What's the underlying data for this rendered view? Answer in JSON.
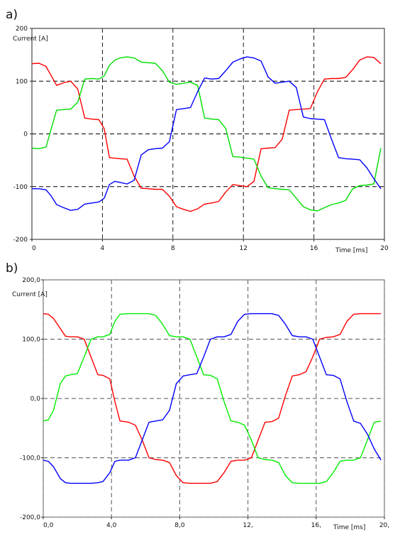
{
  "panel_labels": [
    "a)",
    "b)"
  ],
  "chart_data": [
    {
      "type": "line",
      "panel": "a)",
      "xlabel": "Time [ms]",
      "ylabel": "Current [A]",
      "xlim": [
        0,
        20
      ],
      "ylim": [
        -200,
        200
      ],
      "x_ticks": [
        0,
        4,
        8,
        12,
        16,
        20
      ],
      "x_tick_labels": [
        "0",
        "4",
        "8",
        "12",
        "16",
        "20"
      ],
      "y_ticks": [
        -200,
        -100,
        0,
        100,
        200
      ],
      "y_tick_labels": [
        "-200",
        "-100",
        "0",
        "100",
        "200"
      ],
      "grid": "dashed at inner ticks",
      "series": [
        {
          "color": "#ff0000",
          "x": [
            0,
            0.4,
            0.8,
            1.1,
            1.4,
            1.8,
            2.2,
            2.6,
            3.0,
            3.4,
            3.8,
            4.1,
            4.4,
            4.7,
            5.0,
            5.4,
            5.8,
            6.2,
            6.6,
            7.0,
            7.4,
            7.8,
            8.2,
            8.6,
            9.0,
            9.4,
            9.8,
            10.2,
            10.6,
            11.0,
            11.4,
            11.8,
            12.2,
            12.6,
            13.0,
            13.4,
            13.8,
            14.2,
            14.6,
            15.0,
            15.4,
            15.8,
            16.2,
            16.6,
            17.0,
            17.4,
            17.8,
            18.2,
            18.6,
            19.0,
            19.4,
            19.8
          ],
          "y": [
            133,
            134,
            128,
            110,
            92,
            97,
            100,
            85,
            30,
            28,
            27,
            10,
            -45,
            -46,
            -47,
            -48,
            -80,
            -103,
            -104,
            -105,
            -105,
            -118,
            -138,
            -143,
            -147,
            -142,
            -133,
            -131,
            -128,
            -110,
            -96,
            -98,
            -100,
            -90,
            -28,
            -27,
            -26,
            -10,
            45,
            46,
            47,
            48,
            80,
            104,
            105,
            105,
            107,
            122,
            140,
            146,
            145,
            133
          ]
        },
        {
          "color": "#00dd00",
          "x": [
            0,
            0.4,
            0.8,
            1.1,
            1.4,
            1.8,
            2.2,
            2.6,
            3.0,
            3.4,
            3.8,
            4.1,
            4.4,
            4.7,
            5.0,
            5.4,
            5.8,
            6.2,
            6.6,
            7.0,
            7.4,
            7.8,
            8.2,
            8.6,
            9.0,
            9.4,
            9.8,
            10.2,
            10.6,
            11.0,
            11.4,
            11.8,
            12.2,
            12.6,
            13.0,
            13.4,
            13.8,
            14.2,
            14.6,
            15.0,
            15.4,
            15.8,
            16.2,
            16.6,
            17.0,
            17.4,
            17.8,
            18.2,
            18.6,
            19.0,
            19.4,
            19.8
          ],
          "y": [
            -27,
            -28,
            -25,
            10,
            45,
            46,
            47,
            60,
            104,
            105,
            104,
            110,
            130,
            140,
            144,
            146,
            144,
            136,
            135,
            134,
            120,
            98,
            94,
            96,
            98,
            92,
            30,
            28,
            27,
            10,
            -43,
            -44,
            -46,
            -48,
            -80,
            -102,
            -104,
            -105,
            -106,
            -122,
            -138,
            -144,
            -146,
            -140,
            -134,
            -131,
            -126,
            -104,
            -98,
            -97,
            -95,
            -27
          ]
        },
        {
          "color": "#0000ff",
          "x": [
            0,
            0.4,
            0.8,
            1.1,
            1.4,
            1.8,
            2.2,
            2.6,
            3.0,
            3.4,
            3.8,
            4.1,
            4.4,
            4.7,
            5.0,
            5.4,
            5.8,
            6.2,
            6.6,
            7.0,
            7.4,
            7.8,
            8.2,
            8.6,
            9.0,
            9.4,
            9.8,
            10.2,
            10.6,
            11.0,
            11.4,
            11.8,
            12.2,
            12.6,
            13.0,
            13.4,
            13.8,
            14.2,
            14.6,
            15.0,
            15.4,
            15.8,
            16.2,
            16.6,
            17.0,
            17.4,
            17.8,
            18.2,
            18.6,
            19.0,
            19.4,
            19.8
          ],
          "y": [
            -104,
            -104,
            -106,
            -118,
            -134,
            -140,
            -145,
            -143,
            -133,
            -131,
            -129,
            -122,
            -96,
            -90,
            -92,
            -95,
            -88,
            -40,
            -30,
            -28,
            -27,
            -15,
            46,
            48,
            50,
            80,
            106,
            104,
            105,
            120,
            136,
            142,
            146,
            144,
            138,
            108,
            96,
            98,
            100,
            88,
            32,
            29,
            28,
            27,
            -10,
            -45,
            -47,
            -48,
            -49,
            -64,
            -85,
            -104
          ]
        }
      ]
    },
    {
      "type": "line",
      "panel": "b)",
      "xlabel": "Time [ms]",
      "ylabel": "Current [A]",
      "xlim": [
        0,
        20
      ],
      "ylim": [
        -200,
        200
      ],
      "x_ticks": [
        0,
        4,
        8,
        12,
        16,
        20
      ],
      "x_tick_labels": [
        "0,0",
        "4,0",
        "8,0",
        "12,",
        "16,",
        "20,"
      ],
      "y_ticks": [
        -200,
        -100,
        0,
        100,
        200
      ],
      "y_tick_labels": [
        "-200,0",
        "-100,0",
        "0,0",
        "100,0",
        "200,0"
      ],
      "grid": "dashed at all ticks",
      "series": [
        {
          "color": "#ff0000",
          "x": [
            0,
            0.3,
            0.6,
            1.0,
            1.3,
            1.6,
            2.0,
            2.4,
            2.8,
            3.2,
            3.5,
            3.9,
            4.2,
            4.5,
            5.0,
            5.4,
            5.8,
            6.2,
            6.6,
            7.0,
            7.4,
            7.8,
            8.2,
            8.6,
            9.0,
            9.4,
            9.8,
            10.2,
            10.6,
            11.0,
            11.4,
            11.8,
            12.2,
            12.6,
            13.0,
            13.4,
            13.8,
            14.2,
            14.6,
            15.0,
            15.4,
            15.8,
            16.2,
            16.6,
            17.0,
            17.4,
            17.8,
            18.2,
            18.6,
            19.0,
            19.4,
            19.8
          ],
          "y": [
            143,
            142,
            135,
            118,
            105,
            104,
            104,
            100,
            70,
            40,
            39,
            33,
            -5,
            -38,
            -40,
            -45,
            -70,
            -100,
            -103,
            -104,
            -108,
            -130,
            -142,
            -143,
            -143,
            -143,
            -143,
            -140,
            -125,
            -106,
            -104,
            -104,
            -100,
            -70,
            -40,
            -39,
            -33,
            5,
            38,
            40,
            45,
            70,
            100,
            103,
            104,
            108,
            130,
            142,
            143,
            143,
            143,
            143
          ]
        },
        {
          "color": "#00ee00",
          "x": [
            0,
            0.3,
            0.6,
            1.0,
            1.3,
            1.6,
            2.0,
            2.4,
            2.8,
            3.2,
            3.5,
            3.9,
            4.2,
            4.5,
            5.0,
            5.4,
            5.8,
            6.2,
            6.6,
            7.0,
            7.4,
            7.8,
            8.2,
            8.6,
            9.0,
            9.4,
            9.8,
            10.2,
            10.6,
            11.0,
            11.4,
            11.8,
            12.2,
            12.6,
            13.0,
            13.4,
            13.8,
            14.2,
            14.6,
            15.0,
            15.4,
            15.8,
            16.2,
            16.6,
            17.0,
            17.4,
            17.8,
            18.2,
            18.6,
            19.0,
            19.4,
            19.8
          ],
          "y": [
            -38,
            -36,
            -20,
            25,
            38,
            40,
            42,
            70,
            100,
            104,
            104,
            108,
            130,
            142,
            143,
            143,
            143,
            143,
            140,
            125,
            106,
            104,
            104,
            100,
            70,
            40,
            39,
            33,
            -5,
            -38,
            -40,
            -45,
            -70,
            -100,
            -103,
            -104,
            -108,
            -130,
            -142,
            -143,
            -143,
            -143,
            -143,
            -140,
            -125,
            -106,
            -104,
            -104,
            -100,
            -70,
            -40,
            -38
          ]
        },
        {
          "color": "#0000ff",
          "x": [
            0,
            0.3,
            0.6,
            1.0,
            1.3,
            1.6,
            2.0,
            2.4,
            2.8,
            3.2,
            3.5,
            3.9,
            4.2,
            4.5,
            5.0,
            5.4,
            5.8,
            6.2,
            6.6,
            7.0,
            7.4,
            7.8,
            8.2,
            8.6,
            9.0,
            9.4,
            9.8,
            10.2,
            10.6,
            11.0,
            11.4,
            11.8,
            12.2,
            12.6,
            13.0,
            13.4,
            13.8,
            14.2,
            14.6,
            15.0,
            15.4,
            15.8,
            16.2,
            16.6,
            17.0,
            17.4,
            17.8,
            18.2,
            18.6,
            19.0,
            19.4,
            19.8
          ],
          "y": [
            -104,
            -106,
            -115,
            -135,
            -142,
            -143,
            -143,
            -143,
            -143,
            -142,
            -140,
            -125,
            -106,
            -104,
            -104,
            -100,
            -70,
            -40,
            -38,
            -36,
            -20,
            25,
            38,
            40,
            42,
            70,
            100,
            104,
            104,
            108,
            130,
            142,
            143,
            143,
            143,
            143,
            140,
            125,
            106,
            104,
            104,
            100,
            70,
            40,
            39,
            33,
            -5,
            -38,
            -42,
            -60,
            -85,
            -104
          ]
        }
      ]
    }
  ]
}
